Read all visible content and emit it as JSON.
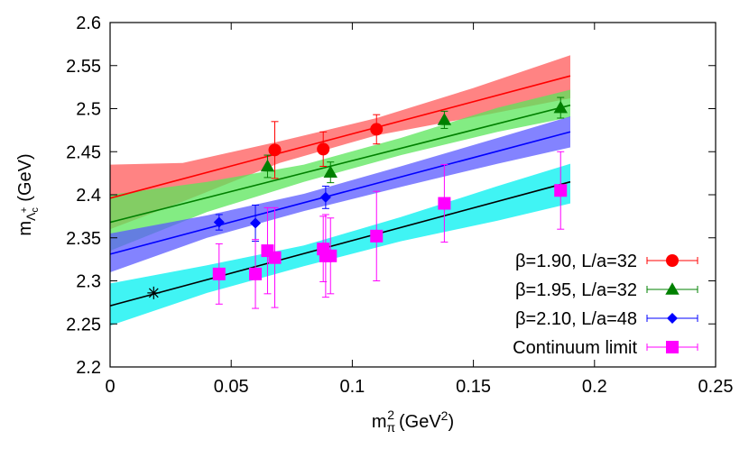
{
  "chart_data": {
    "type": "scatter",
    "xlabel": {
      "base": "m",
      "sub": "π",
      "sup": "2",
      "unit": "(GeV",
      "unit_sup": "2",
      "unit_close": ")"
    },
    "ylabel": {
      "base": "m",
      "sub": "Λ",
      "subsub": "c",
      "subsup": "+",
      "unit": "(GeV)"
    },
    "xlim": [
      0,
      0.25
    ],
    "ylim": [
      2.2,
      2.6
    ],
    "x_ticks": [
      0,
      0.05,
      0.1,
      0.15,
      0.2,
      0.25
    ],
    "x_tick_labels": [
      "0",
      "0.05",
      "0.1",
      "0.15",
      "0.2",
      "0.25"
    ],
    "y_ticks": [
      2.2,
      2.25,
      2.3,
      2.35,
      2.4,
      2.45,
      2.5,
      2.55,
      2.6
    ],
    "y_tick_labels": [
      "2.2",
      "2.25",
      "2.3",
      "2.35",
      "2.4",
      "2.45",
      "2.5",
      "2.55",
      "2.6"
    ],
    "grid": false,
    "legend_position": "bottom-right",
    "physical_point": {
      "x": 0.018,
      "y": 2.286,
      "color": "#000000"
    },
    "series": [
      {
        "name": "β=1.90, L/a=32",
        "color": "#ff0000",
        "band_color": "#ff5a5a",
        "marker": "circle",
        "points": [
          {
            "x": 0.068,
            "y": 2.452,
            "err": 0.033
          },
          {
            "x": 0.088,
            "y": 2.453,
            "err": 0.02
          },
          {
            "x": 0.11,
            "y": 2.476,
            "err": 0.017
          }
        ],
        "fit": {
          "x0": 0,
          "y0": 2.396,
          "x1": 0.19,
          "y1": 2.538
        },
        "band": [
          {
            "x": 0.0,
            "lo": 2.36,
            "hi": 2.435
          },
          {
            "x": 0.03,
            "lo": 2.392,
            "hi": 2.437
          },
          {
            "x": 0.07,
            "lo": 2.437,
            "hi": 2.462
          },
          {
            "x": 0.11,
            "lo": 2.469,
            "hi": 2.489
          },
          {
            "x": 0.15,
            "lo": 2.49,
            "hi": 2.524
          },
          {
            "x": 0.19,
            "lo": 2.512,
            "hi": 2.562
          }
        ]
      },
      {
        "name": "β=1.95, L/a=32",
        "color": "#008000",
        "band_color": "#5ae65a",
        "marker": "triangle",
        "points": [
          {
            "x": 0.065,
            "y": 2.433,
            "err": 0.013
          },
          {
            "x": 0.091,
            "y": 2.426,
            "err": 0.012
          },
          {
            "x": 0.138,
            "y": 2.487,
            "err": 0.01
          },
          {
            "x": 0.186,
            "y": 2.501,
            "err": 0.012
          }
        ],
        "fit": {
          "x0": 0,
          "y0": 2.368,
          "x1": 0.19,
          "y1": 2.504
        },
        "band": [
          {
            "x": 0.0,
            "lo": 2.335,
            "hi": 2.4
          },
          {
            "x": 0.04,
            "lo": 2.38,
            "hi": 2.415
          },
          {
            "x": 0.08,
            "lo": 2.415,
            "hi": 2.435
          },
          {
            "x": 0.12,
            "lo": 2.446,
            "hi": 2.466
          },
          {
            "x": 0.16,
            "lo": 2.473,
            "hi": 2.501
          },
          {
            "x": 0.19,
            "lo": 2.49,
            "hi": 2.522
          }
        ]
      },
      {
        "name": "β=2.10, L/a=48",
        "color": "#0000ff",
        "band_color": "#5a5aff",
        "marker": "diamond",
        "points": [
          {
            "x": 0.045,
            "y": 2.368,
            "err": 0.009
          },
          {
            "x": 0.06,
            "y": 2.367,
            "err": 0.021
          },
          {
            "x": 0.089,
            "y": 2.397,
            "err": 0.013
          }
        ],
        "fit": {
          "x0": 0,
          "y0": 2.331,
          "x1": 0.19,
          "y1": 2.473
        },
        "band": [
          {
            "x": 0.0,
            "lo": 2.31,
            "hi": 2.355
          },
          {
            "x": 0.04,
            "lo": 2.35,
            "hi": 2.376
          },
          {
            "x": 0.08,
            "lo": 2.381,
            "hi": 2.401
          },
          {
            "x": 0.12,
            "lo": 2.409,
            "hi": 2.433
          },
          {
            "x": 0.16,
            "lo": 2.436,
            "hi": 2.466
          },
          {
            "x": 0.19,
            "lo": 2.455,
            "hi": 2.491
          }
        ]
      },
      {
        "name": "Continuum limit",
        "color": "#ff00ff",
        "band_color": "#00f0f0",
        "marker": "square",
        "points": [
          {
            "x": 0.045,
            "y": 2.308,
            "err": 0.035
          },
          {
            "x": 0.06,
            "y": 2.308,
            "err": 0.04
          },
          {
            "x": 0.065,
            "y": 2.335,
            "err": 0.05
          },
          {
            "x": 0.068,
            "y": 2.327,
            "err": 0.058
          },
          {
            "x": 0.088,
            "y": 2.337,
            "err": 0.038
          },
          {
            "x": 0.089,
            "y": 2.329,
            "err": 0.048
          },
          {
            "x": 0.091,
            "y": 2.329,
            "err": 0.044
          },
          {
            "x": 0.11,
            "y": 2.352,
            "err": 0.052
          },
          {
            "x": 0.138,
            "y": 2.39,
            "err": 0.045
          },
          {
            "x": 0.186,
            "y": 2.405,
            "err": 0.045
          }
        ],
        "fit": {
          "x0": 0,
          "y0": 2.271,
          "x1": 0.19,
          "y1": 2.415
        },
        "band": [
          {
            "x": 0.0,
            "lo": 2.248,
            "hi": 2.297
          },
          {
            "x": 0.04,
            "lo": 2.286,
            "hi": 2.318
          },
          {
            "x": 0.08,
            "lo": 2.317,
            "hi": 2.341
          },
          {
            "x": 0.12,
            "lo": 2.346,
            "hi": 2.374
          },
          {
            "x": 0.16,
            "lo": 2.37,
            "hi": 2.41
          },
          {
            "x": 0.19,
            "lo": 2.39,
            "hi": 2.436
          }
        ]
      }
    ]
  }
}
